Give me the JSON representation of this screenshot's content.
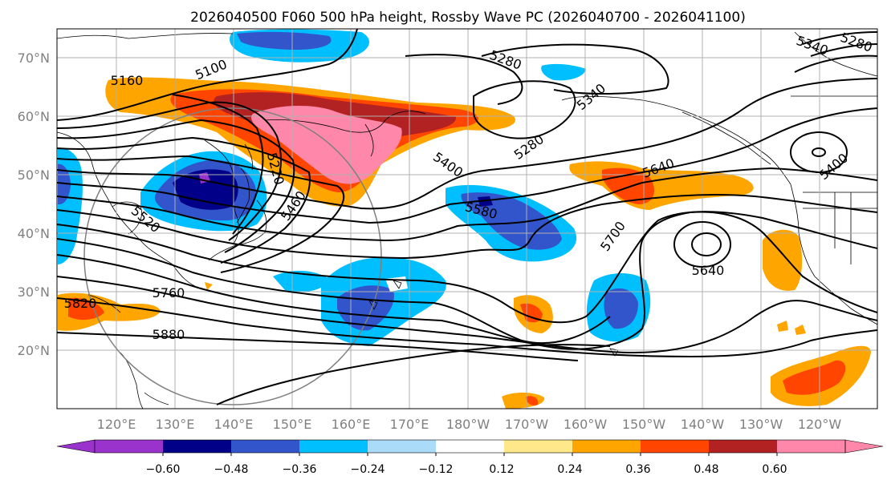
{
  "title": "2026040500 F060 500 hPa height, Rossby Wave PC (2026040700 - 2026041100)",
  "lat_labels": [
    "70°N",
    "60°N",
    "50°N",
    "40°N",
    "30°N",
    "20°N"
  ],
  "lon_labels": [
    "120°E",
    "130°E",
    "140°E",
    "150°E",
    "160°E",
    "170°E",
    "180°W",
    "170°W",
    "160°W",
    "150°W",
    "140°W",
    "130°W",
    "120°W"
  ],
  "contour_labels": [
    "5160",
    "5100",
    "5280",
    "5340",
    "5340",
    "5280",
    "5280",
    "5400",
    "5220",
    "5460",
    "5520",
    "5580",
    "5640",
    "5700",
    "5640",
    "5400",
    "5760",
    "5820",
    "5880"
  ],
  "colorbar": {
    "ticks": [
      "−0.60",
      "−0.48",
      "−0.36",
      "−0.24",
      "−0.12",
      "0.12",
      "0.24",
      "0.36",
      "0.48",
      "0.60"
    ],
    "colors": [
      "#9933cc",
      "#000088",
      "#3355cc",
      "#00bfff",
      "#aadcfa",
      "#ffffff",
      "#ffe88a",
      "#ffa500",
      "#ff4500",
      "#b22222",
      "#ff88aa"
    ]
  },
  "map_data": {
    "projection": "equirectangular",
    "lon_range": [
      "110°E",
      "115°W"
    ],
    "lat_range": [
      "10°N",
      "75°N"
    ],
    "gridlines": true
  }
}
